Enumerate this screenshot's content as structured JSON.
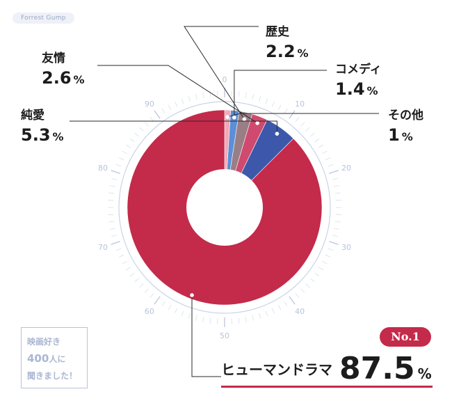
{
  "tag": "Forrest Gump",
  "stamp": {
    "line1": "映画好き",
    "line2_num": "400",
    "line2_rest": "人に",
    "line3": "聞きました！"
  },
  "badge": "No.1",
  "colors": {
    "human_drama": "#c42a4a",
    "romance": "#3d58aa",
    "friendship": "#cf4a6e",
    "history": "#9a7e86",
    "comedy": "#5b8fd6",
    "other": "#f2a8b8",
    "scale": "#b7c3dc",
    "accent": "#c42a4a"
  },
  "chart_data": {
    "type": "pie",
    "donut": true,
    "categories": [
      "ヒューマンドラマ",
      "純愛",
      "友情",
      "歴史",
      "コメディ",
      "その他"
    ],
    "values": [
      87.5,
      5.3,
      2.6,
      2.2,
      1.4,
      1
    ],
    "value_labels": [
      "87.5",
      "5.3",
      "2.6",
      "2.2",
      "1.4",
      "1"
    ],
    "unit": "%",
    "dial_labels": [
      "0",
      "10",
      "20",
      "30",
      "40",
      "50",
      "60",
      "70",
      "80",
      "90"
    ]
  }
}
